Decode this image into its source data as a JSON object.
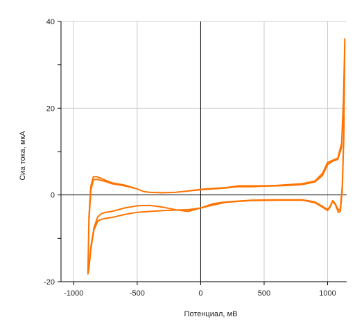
{
  "chart_data": {
    "type": "line",
    "title": "",
    "xlabel": "Потенциал, мВ",
    "ylabel": "Сиа тока, мкА",
    "xlim": [
      -1100,
      1150
    ],
    "ylim": [
      -20,
      40
    ],
    "x_ticks": [
      -1000,
      -500,
      0,
      500,
      1000
    ],
    "y_ticks": [
      -20,
      0,
      20,
      40
    ],
    "grid": true,
    "legend": "none",
    "colors": {
      "series": "#ff7300",
      "grid": "#cccccc",
      "axis": "#000000"
    },
    "series": [
      {
        "values": [
          [
            470,
            2.0
          ],
          [
            600,
            2.1
          ],
          [
            700,
            2.2
          ],
          [
            800,
            2.4
          ],
          [
            900,
            3.0
          ],
          [
            960,
            4.5
          ],
          [
            1000,
            7.0
          ],
          [
            1040,
            7.8
          ],
          [
            1080,
            8.2
          ],
          [
            1110,
            11.0
          ],
          [
            1125,
            20.0
          ],
          [
            1135,
            36.0
          ],
          [
            1128,
            14.0
          ],
          [
            1115,
            2.0
          ],
          [
            1100,
            -3.2
          ],
          [
            1085,
            -3.5
          ],
          [
            1060,
            -2.0
          ],
          [
            1040,
            -1.3
          ],
          [
            1020,
            -2.6
          ],
          [
            1000,
            -3.4
          ],
          [
            970,
            -2.8
          ],
          [
            900,
            -1.6
          ],
          [
            800,
            -1.1
          ],
          [
            600,
            -1.1
          ],
          [
            400,
            -1.2
          ],
          [
            200,
            -1.6
          ],
          [
            100,
            -2.0
          ],
          [
            0,
            -3.0
          ],
          [
            -100,
            -3.8
          ],
          [
            -200,
            -3.4
          ],
          [
            -300,
            -2.8
          ],
          [
            -400,
            -2.4
          ],
          [
            -500,
            -2.5
          ],
          [
            -600,
            -3.0
          ],
          [
            -700,
            -3.8
          ],
          [
            -750,
            -4.0
          ],
          [
            -780,
            -4.3
          ],
          [
            -810,
            -5.0
          ],
          [
            -840,
            -7.5
          ],
          [
            -865,
            -12.0
          ],
          [
            -880,
            -16.5
          ],
          [
            -888,
            -18.0
          ],
          [
            -880,
            -5.0
          ],
          [
            -865,
            2.0
          ],
          [
            -845,
            4.2
          ],
          [
            -820,
            4.2
          ],
          [
            -790,
            3.9
          ],
          [
            -750,
            3.4
          ],
          [
            -700,
            2.8
          ],
          [
            -600,
            2.3
          ],
          [
            -500,
            1.4
          ],
          [
            -450,
            0.8
          ],
          [
            -400,
            0.6
          ],
          [
            -300,
            0.5
          ],
          [
            -200,
            0.6
          ],
          [
            -100,
            0.9
          ],
          [
            0,
            1.3
          ],
          [
            100,
            1.5
          ],
          [
            200,
            1.7
          ],
          [
            250,
            1.9
          ],
          [
            300,
            2.1
          ],
          [
            400,
            2.1
          ],
          [
            500,
            2.1
          ],
          [
            600,
            2.2
          ],
          [
            700,
            2.4
          ],
          [
            800,
            2.6
          ],
          [
            900,
            3.2
          ],
          [
            960,
            5.0
          ],
          [
            1000,
            7.5
          ],
          [
            1040,
            8.0
          ],
          [
            1080,
            8.5
          ],
          [
            1110,
            12.0
          ],
          [
            1125,
            22.0
          ],
          [
            1135,
            35.5
          ],
          [
            1128,
            14.0
          ],
          [
            1115,
            1.0
          ],
          [
            1100,
            -3.8
          ],
          [
            1085,
            -4.0
          ],
          [
            1060,
            -2.2
          ],
          [
            1040,
            -1.4
          ],
          [
            1020,
            -2.8
          ],
          [
            1000,
            -3.6
          ],
          [
            970,
            -3.0
          ],
          [
            900,
            -1.8
          ],
          [
            800,
            -1.2
          ],
          [
            600,
            -1.2
          ],
          [
            400,
            -1.3
          ],
          [
            200,
            -1.7
          ],
          [
            100,
            -2.3
          ],
          [
            0,
            -3.0
          ],
          [
            -100,
            -3.4
          ],
          [
            -200,
            -3.5
          ],
          [
            -300,
            -3.6
          ],
          [
            -400,
            -3.8
          ],
          [
            -500,
            -4.0
          ],
          [
            -600,
            -4.5
          ],
          [
            -700,
            -5.2
          ],
          [
            -750,
            -5.4
          ],
          [
            -780,
            -5.6
          ],
          [
            -810,
            -6.0
          ],
          [
            -840,
            -8.0
          ],
          [
            -865,
            -12.5
          ],
          [
            -880,
            -17.0
          ],
          [
            -888,
            -18.2
          ],
          [
            -880,
            -6.0
          ],
          [
            -865,
            1.0
          ],
          [
            -845,
            3.5
          ],
          [
            -820,
            3.6
          ],
          [
            -790,
            3.4
          ],
          [
            -750,
            3.1
          ],
          [
            -700,
            2.6
          ],
          [
            -600,
            2.1
          ],
          [
            -500,
            1.4
          ],
          [
            -450,
            0.8
          ],
          [
            -400,
            0.6
          ],
          [
            -300,
            0.5
          ],
          [
            -200,
            0.6
          ],
          [
            -100,
            0.9
          ],
          [
            0,
            1.2
          ],
          [
            100,
            1.4
          ],
          [
            200,
            1.6
          ],
          [
            250,
            1.8
          ],
          [
            300,
            1.9
          ],
          [
            400,
            1.9
          ],
          [
            470,
            2.0
          ]
        ]
      }
    ]
  }
}
